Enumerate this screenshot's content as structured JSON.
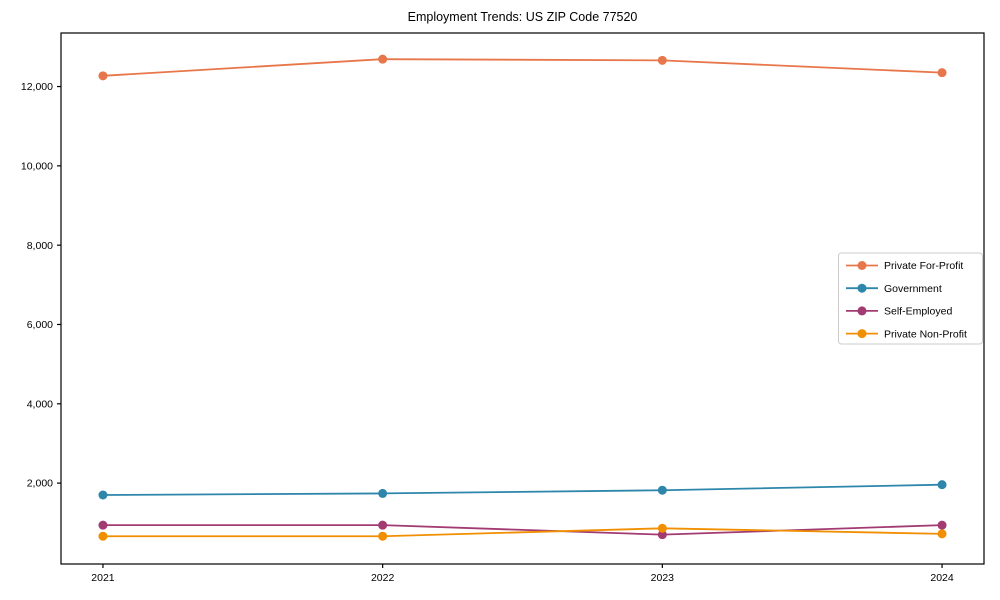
{
  "title": "Employment Trends: US ZIP Code 77520",
  "chart_data": {
    "type": "line",
    "title": "Employment Trends: US ZIP Code 77520",
    "xlabel": "",
    "ylabel": "",
    "x": [
      2021,
      2022,
      2023,
      2024
    ],
    "x_tick_labels": [
      "2021",
      "2022",
      "2023",
      "2024"
    ],
    "series": [
      {
        "name": "Private For-Profit",
        "color": "#E8764B",
        "values": [
          12270,
          12690,
          12660,
          12350
        ]
      },
      {
        "name": "Government",
        "color": "#2E86AB",
        "values": [
          1700,
          1740,
          1820,
          1960
        ]
      },
      {
        "name": "Self-Employed",
        "color": "#A23B72",
        "values": [
          940,
          940,
          700,
          940
        ]
      },
      {
        "name": "Private Non-Profit",
        "color": "#F18F01",
        "values": [
          660,
          660,
          860,
          720
        ]
      }
    ],
    "y_ticks": [
      2000,
      4000,
      6000,
      8000,
      10000,
      12000
    ],
    "y_tick_labels": [
      "2,000",
      "4,000",
      "6,000",
      "8,000",
      "10,000",
      "12,000"
    ],
    "xlim": [
      2020.85,
      2024.15
    ],
    "ylim": [
      -40,
      13350
    ],
    "grid": false,
    "legend_position": "center-right",
    "marker": "circle",
    "frame_color": "#000000",
    "legend_border_color": "#cccccc",
    "background_color": "#ffffff"
  }
}
